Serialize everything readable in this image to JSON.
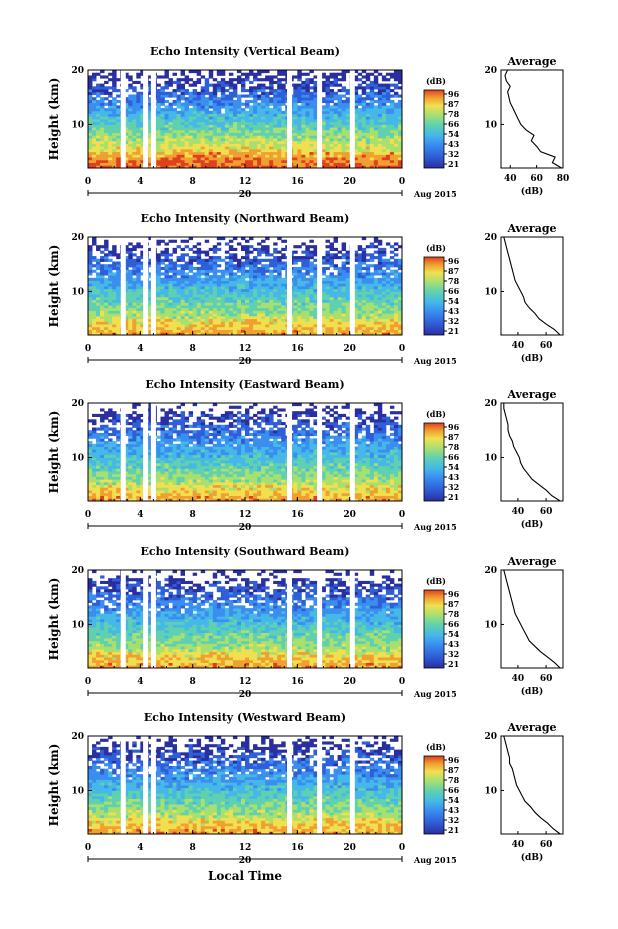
{
  "figure": {
    "xlabel": "Local Time",
    "date_label": "Aug 2015",
    "day_label": "20"
  },
  "chart_data": [
    {
      "type": "heatmap",
      "title": "Echo Intensity (Vertical Beam)",
      "ylabel": "Height (km)",
      "xlim": [
        0,
        24
      ],
      "ylim": [
        2,
        20
      ],
      "xticks": [
        "0",
        "4",
        "8",
        "12",
        "16",
        "20",
        "0"
      ],
      "yticks": [
        "10",
        "20"
      ],
      "colorbar_unit": "(dB)",
      "colorbar_ticks": [
        "96",
        "87",
        "78",
        "66",
        "54",
        "43",
        "32",
        "21"
      ],
      "gaps_hours": [
        2.7,
        4.4,
        5.0,
        15.4,
        17.7,
        20.2
      ],
      "profile": {
        "title": "Average",
        "xlabel": "(dB)",
        "xticks": [
          "40",
          "60",
          "80"
        ],
        "xlim": [
          33,
          80
        ],
        "yticks": [
          "10",
          "20"
        ],
        "ylim": [
          2,
          20
        ],
        "heights": [
          2,
          3,
          4,
          5,
          6,
          7,
          8,
          9,
          10,
          11,
          12,
          13,
          14,
          15,
          16,
          17,
          18,
          19,
          20
        ],
        "values": [
          79,
          72,
          74,
          63,
          60,
          56,
          58,
          52,
          48,
          46,
          44,
          42,
          40,
          39,
          38,
          40,
          37,
          36,
          38
        ]
      }
    },
    {
      "type": "heatmap",
      "title": "Echo Intensity (Northward Beam)",
      "ylabel": "Height (km)",
      "xlim": [
        0,
        24
      ],
      "ylim": [
        2,
        20
      ],
      "xticks": [
        "0",
        "4",
        "8",
        "12",
        "16",
        "20",
        "0"
      ],
      "yticks": [
        "10",
        "20"
      ],
      "colorbar_unit": "(dB)",
      "colorbar_ticks": [
        "96",
        "87",
        "78",
        "66",
        "54",
        "43",
        "32",
        "21"
      ],
      "gaps_hours": [
        2.7,
        4.4,
        5.0,
        15.4,
        17.7,
        20.2
      ],
      "profile": {
        "title": "Average",
        "xlabel": "(dB)",
        "xticks": [
          "40",
          "60"
        ],
        "xlim": [
          28,
          72
        ],
        "yticks": [
          "10",
          "20"
        ],
        "ylim": [
          2,
          20
        ],
        "heights": [
          2,
          3,
          4,
          5,
          6,
          7,
          8,
          9,
          10,
          11,
          12,
          13,
          14,
          15,
          16,
          17,
          18,
          19,
          20
        ],
        "values": [
          70,
          66,
          60,
          55,
          52,
          48,
          45,
          44,
          42,
          40,
          38,
          37,
          36,
          35,
          34,
          33,
          32,
          31,
          30
        ]
      }
    },
    {
      "type": "heatmap",
      "title": "Echo Intensity (Eastward Beam)",
      "ylabel": "Height (km)",
      "xlim": [
        0,
        24
      ],
      "ylim": [
        2,
        20
      ],
      "xticks": [
        "0",
        "4",
        "8",
        "12",
        "16",
        "20",
        "0"
      ],
      "yticks": [
        "10",
        "20"
      ],
      "colorbar_unit": "(dB)",
      "colorbar_ticks": [
        "96",
        "87",
        "78",
        "66",
        "54",
        "43",
        "32",
        "21"
      ],
      "gaps_hours": [
        2.7,
        4.4,
        5.0,
        15.4,
        17.7,
        20.2
      ],
      "profile": {
        "title": "Average",
        "xlabel": "(dB)",
        "xticks": [
          "40",
          "60"
        ],
        "xlim": [
          28,
          72
        ],
        "yticks": [
          "10",
          "20"
        ],
        "ylim": [
          2,
          20
        ],
        "heights": [
          2,
          3,
          4,
          5,
          6,
          7,
          8,
          9,
          10,
          11,
          12,
          13,
          14,
          15,
          16,
          17,
          18,
          19,
          20
        ],
        "values": [
          70,
          64,
          60,
          55,
          50,
          47,
          44,
          42,
          41,
          39,
          37,
          36,
          34,
          33,
          33,
          32,
          31,
          30,
          30
        ]
      }
    },
    {
      "type": "heatmap",
      "title": "Echo Intensity (Southward Beam)",
      "ylabel": "Height (km)",
      "xlim": [
        0,
        24
      ],
      "ylim": [
        2,
        20
      ],
      "xticks": [
        "0",
        "4",
        "8",
        "12",
        "16",
        "20",
        "0"
      ],
      "yticks": [
        "10",
        "20"
      ],
      "colorbar_unit": "(dB)",
      "colorbar_ticks": [
        "96",
        "87",
        "78",
        "66",
        "54",
        "43",
        "32",
        "21"
      ],
      "gaps_hours": [
        2.7,
        4.4,
        5.0,
        15.4,
        17.7,
        20.2
      ],
      "profile": {
        "title": "Average",
        "xlabel": "(dB)",
        "xticks": [
          "40",
          "60"
        ],
        "xlim": [
          28,
          72
        ],
        "yticks": [
          "10",
          "20"
        ],
        "ylim": [
          2,
          20
        ],
        "heights": [
          2,
          3,
          4,
          5,
          6,
          7,
          8,
          9,
          10,
          11,
          12,
          13,
          14,
          15,
          16,
          17,
          18,
          19,
          20
        ],
        "values": [
          70,
          66,
          61,
          56,
          52,
          48,
          46,
          44,
          42,
          40,
          38,
          37,
          36,
          35,
          34,
          33,
          32,
          31,
          30
        ]
      }
    },
    {
      "type": "heatmap",
      "title": "Echo Intensity (Westward Beam)",
      "ylabel": "Height (km)",
      "xlim": [
        0,
        24
      ],
      "ylim": [
        2,
        20
      ],
      "xticks": [
        "0",
        "4",
        "8",
        "12",
        "16",
        "20",
        "0"
      ],
      "yticks": [
        "10",
        "20"
      ],
      "colorbar_unit": "(dB)",
      "colorbar_ticks": [
        "96",
        "87",
        "78",
        "66",
        "54",
        "43",
        "32",
        "21"
      ],
      "gaps_hours": [
        2.7,
        4.4,
        5.0,
        15.4,
        17.7,
        20.2
      ],
      "profile": {
        "title": "Average",
        "xlabel": "(dB)",
        "xticks": [
          "40",
          "60"
        ],
        "xlim": [
          28,
          72
        ],
        "yticks": [
          "10",
          "20"
        ],
        "ylim": [
          2,
          20
        ],
        "heights": [
          2,
          3,
          4,
          5,
          6,
          7,
          8,
          9,
          10,
          11,
          12,
          13,
          14,
          15,
          16,
          17,
          18,
          19,
          20
        ],
        "values": [
          70,
          65,
          61,
          56,
          52,
          49,
          45,
          43,
          41,
          39,
          38,
          37,
          36,
          34,
          34,
          33,
          32,
          31,
          30
        ]
      }
    }
  ],
  "colors": {
    "colormap": [
      "#2a2fa0",
      "#2f5fd8",
      "#3a8ef0",
      "#45b8e8",
      "#5fd0b0",
      "#a8e070",
      "#f0e050",
      "#f0a030",
      "#e04020"
    ]
  }
}
